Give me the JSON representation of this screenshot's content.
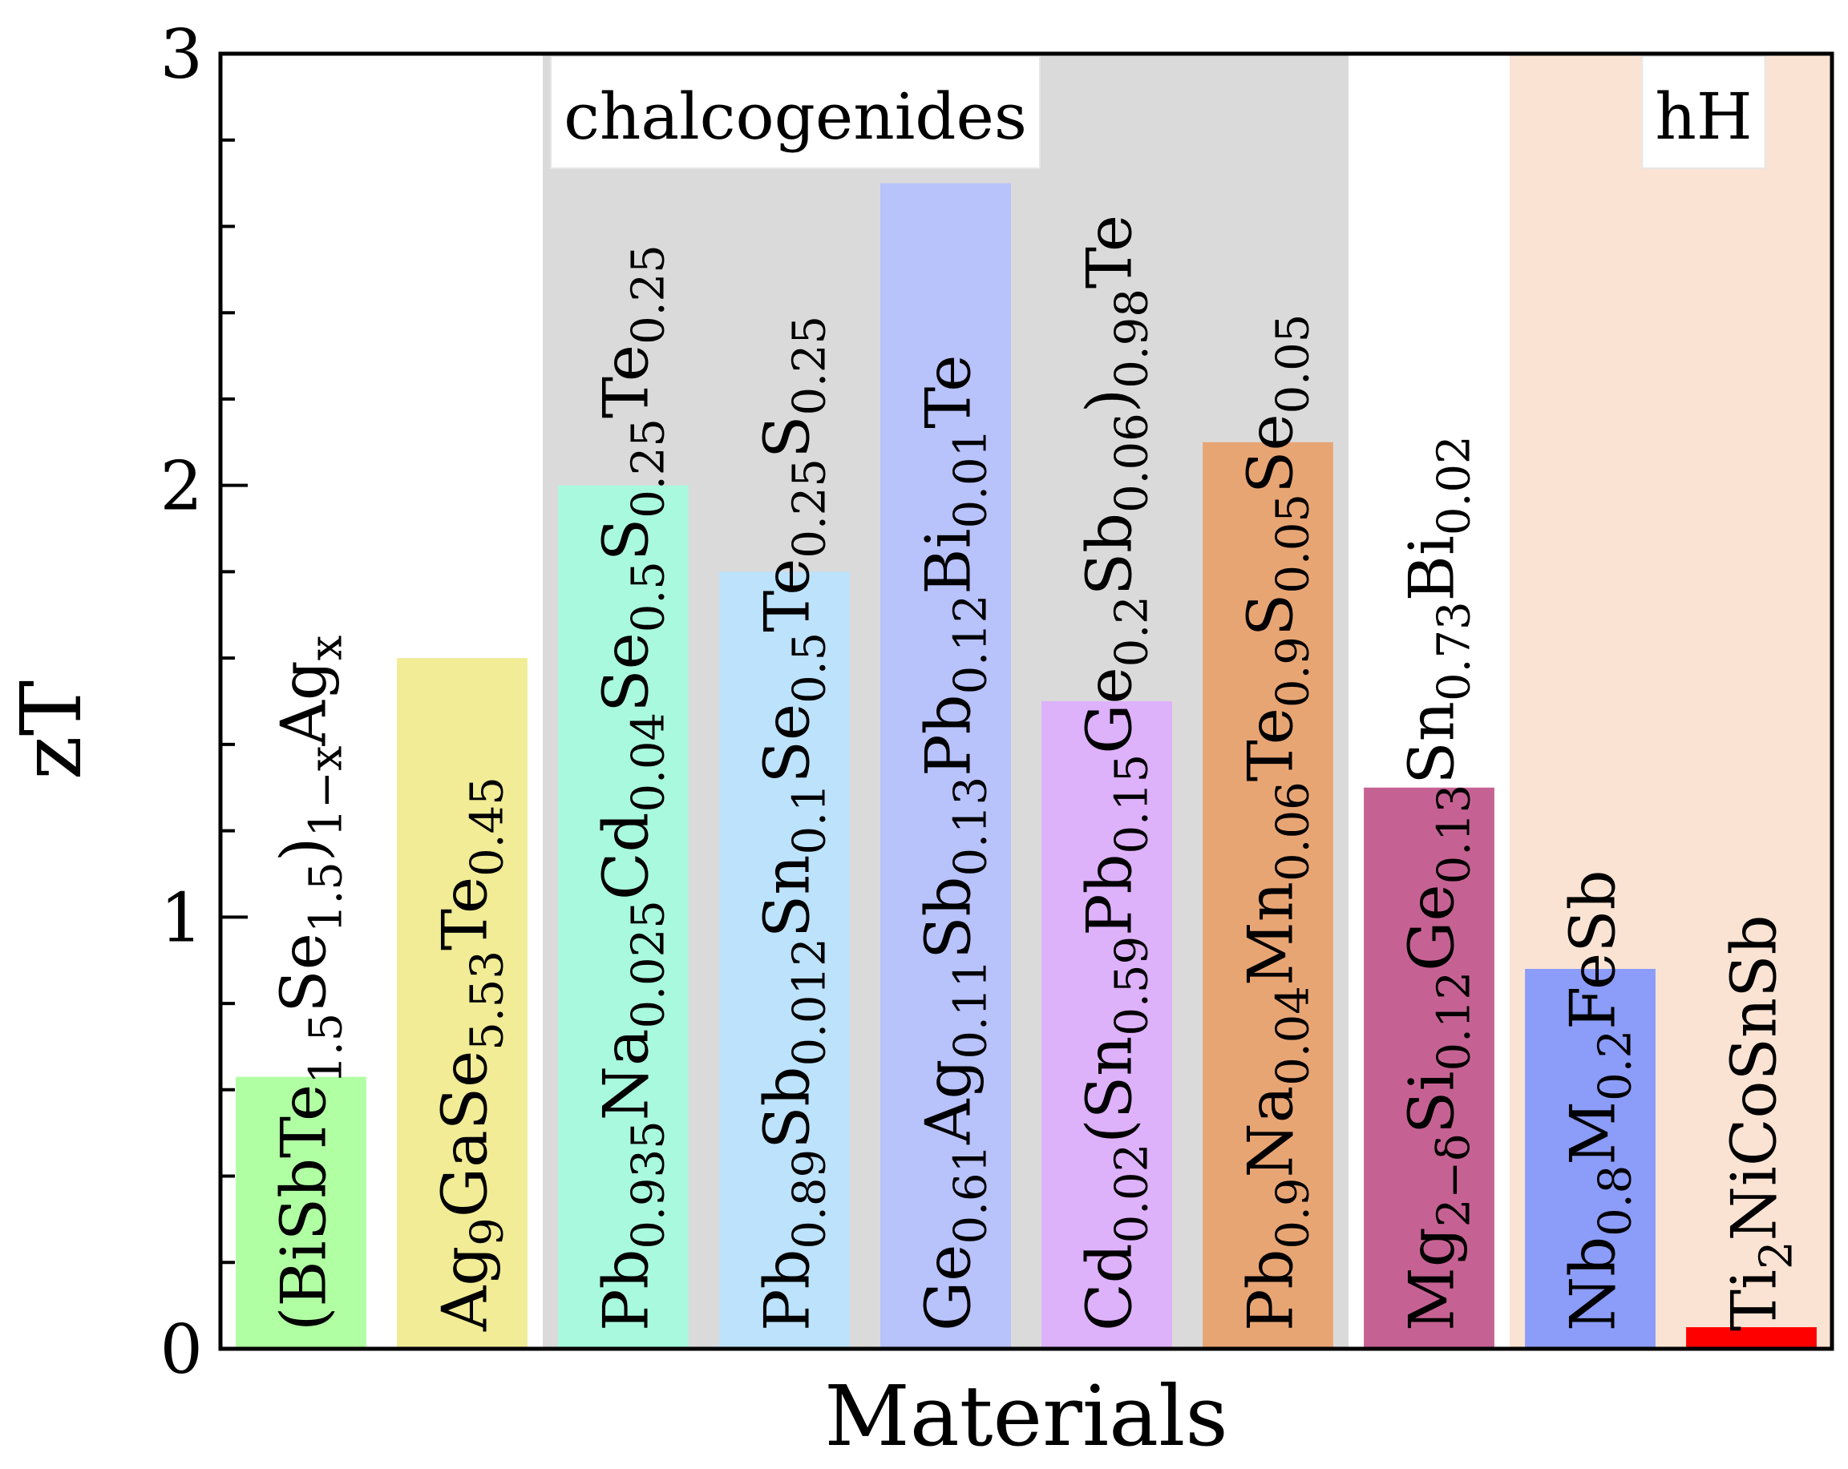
{
  "chart_data": {
    "type": "bar",
    "ylabel": "zT",
    "xlabel": "Materials",
    "ylim": [
      0,
      3
    ],
    "yticks": [
      "0",
      "1",
      "2",
      "3"
    ],
    "grid": false,
    "categories": [
      "(BiSbTe1.5Se1.5)1−xAgx",
      "Ag9GaSe5.53Te0.45",
      "Pb0.935Na0.025Cd0.04Se0.5S0.25Te0.25",
      "Pb0.89Sb0.012Sn0.1Se0.5Te0.25S0.25",
      "Ge0.61Ag0.11Sb0.13Pb0.12Bi0.01Te",
      "Cd0.02(Sn0.59Pb0.15Ge0.2Sb0.06)0.98Te",
      "Pb0.9Na0.04Mn0.06Te0.9S0.05Se0.05",
      "Mg2−δSi0.12Ge0.13Sn0.73Bi0.02",
      "Nb0.8M0.2FeSb",
      "Ti2NiCoSnSb"
    ],
    "values": [
      0.63,
      1.6,
      2.0,
      1.8,
      2.7,
      1.5,
      2.1,
      1.3,
      0.88,
      0.05
    ],
    "bar_colors": [
      "#b1ffa3",
      "#f1ec95",
      "#a9f9df",
      "#bde2fb",
      "#b8c2fb",
      "#deb1fb",
      "#e8a574",
      "#c66293",
      "#8c9cf9",
      "#ff0000"
    ],
    "formulas": [
      [
        [
          "(BiSbTe",
          "n"
        ],
        [
          "1.5",
          "sub"
        ],
        [
          "Se",
          "n"
        ],
        [
          "1.5",
          "sub"
        ],
        [
          ")",
          "n"
        ],
        [
          "1−x",
          "sub"
        ],
        [
          "Ag",
          "n"
        ],
        [
          "x",
          "sub"
        ]
      ],
      [
        [
          "Ag",
          "n"
        ],
        [
          "9",
          "sub"
        ],
        [
          "GaSe",
          "n"
        ],
        [
          "5.53",
          "sub"
        ],
        [
          "Te",
          "n"
        ],
        [
          "0.45",
          "sub"
        ]
      ],
      [
        [
          "Pb",
          "n"
        ],
        [
          "0.935",
          "sub"
        ],
        [
          "Na",
          "n"
        ],
        [
          "0.025",
          "sub"
        ],
        [
          "Cd",
          "n"
        ],
        [
          "0.04",
          "sub"
        ],
        [
          "Se",
          "n"
        ],
        [
          "0.5",
          "sub"
        ],
        [
          "S",
          "n"
        ],
        [
          "0.25",
          "sub"
        ],
        [
          "Te",
          "n"
        ],
        [
          "0.25",
          "sub"
        ]
      ],
      [
        [
          "Pb",
          "n"
        ],
        [
          "0.89",
          "sub"
        ],
        [
          "Sb",
          "n"
        ],
        [
          "0.012",
          "sub"
        ],
        [
          "Sn",
          "n"
        ],
        [
          "0.1",
          "sub"
        ],
        [
          "Se",
          "n"
        ],
        [
          "0.5",
          "sub"
        ],
        [
          "Te",
          "n"
        ],
        [
          "0.25",
          "sub"
        ],
        [
          "S",
          "n"
        ],
        [
          "0.25",
          "sub"
        ]
      ],
      [
        [
          "Ge",
          "n"
        ],
        [
          "0.61",
          "sub"
        ],
        [
          "Ag",
          "n"
        ],
        [
          "0.11",
          "sub"
        ],
        [
          "Sb",
          "n"
        ],
        [
          "0.13",
          "sub"
        ],
        [
          "Pb",
          "n"
        ],
        [
          "0.12",
          "sub"
        ],
        [
          "Bi",
          "n"
        ],
        [
          "0.01",
          "sub"
        ],
        [
          "Te",
          "n"
        ]
      ],
      [
        [
          "Cd",
          "n"
        ],
        [
          "0.02",
          "sub"
        ],
        [
          "(Sn",
          "n"
        ],
        [
          "0.59",
          "sub"
        ],
        [
          "Pb",
          "n"
        ],
        [
          "0.15",
          "sub"
        ],
        [
          "Ge",
          "n"
        ],
        [
          "0.2",
          "sub"
        ],
        [
          "Sb",
          "n"
        ],
        [
          "0.06",
          "sub"
        ],
        [
          ")",
          "n"
        ],
        [
          "0.98",
          "sub"
        ],
        [
          "Te",
          "n"
        ]
      ],
      [
        [
          "Pb",
          "n"
        ],
        [
          "0.9",
          "sub"
        ],
        [
          "Na",
          "n"
        ],
        [
          "0.04",
          "sub"
        ],
        [
          "Mn",
          "n"
        ],
        [
          "0.06",
          "sub"
        ],
        [
          "Te",
          "n"
        ],
        [
          "0.9",
          "sub"
        ],
        [
          "S",
          "n"
        ],
        [
          "0.05",
          "sub"
        ],
        [
          "Se",
          "n"
        ],
        [
          "0.05",
          "sub"
        ]
      ],
      [
        [
          "Mg",
          "n"
        ],
        [
          "2−δ",
          "sub"
        ],
        [
          "Si",
          "n"
        ],
        [
          "0.12",
          "sub"
        ],
        [
          "Ge",
          "n"
        ],
        [
          "0.13",
          "sub"
        ],
        [
          "Sn",
          "n"
        ],
        [
          "0.73",
          "sub"
        ],
        [
          "Bi",
          "n"
        ],
        [
          "0.02",
          "sub"
        ]
      ],
      [
        [
          "Nb",
          "n"
        ],
        [
          "0.8",
          "sub"
        ],
        [
          "M",
          "n"
        ],
        [
          "0.2",
          "sub"
        ],
        [
          "FeSb",
          "n"
        ]
      ],
      [
        [
          "Ti",
          "n"
        ],
        [
          "2",
          "sub"
        ],
        [
          "NiCoSnSb",
          "n"
        ]
      ]
    ],
    "regions": [
      {
        "label": "chalcogenides",
        "start_index": 2,
        "end_index": 6,
        "color": "#dadada"
      },
      {
        "label": "hH",
        "start_index": 8,
        "end_index": 9,
        "color": "#fbe3d3"
      }
    ]
  }
}
